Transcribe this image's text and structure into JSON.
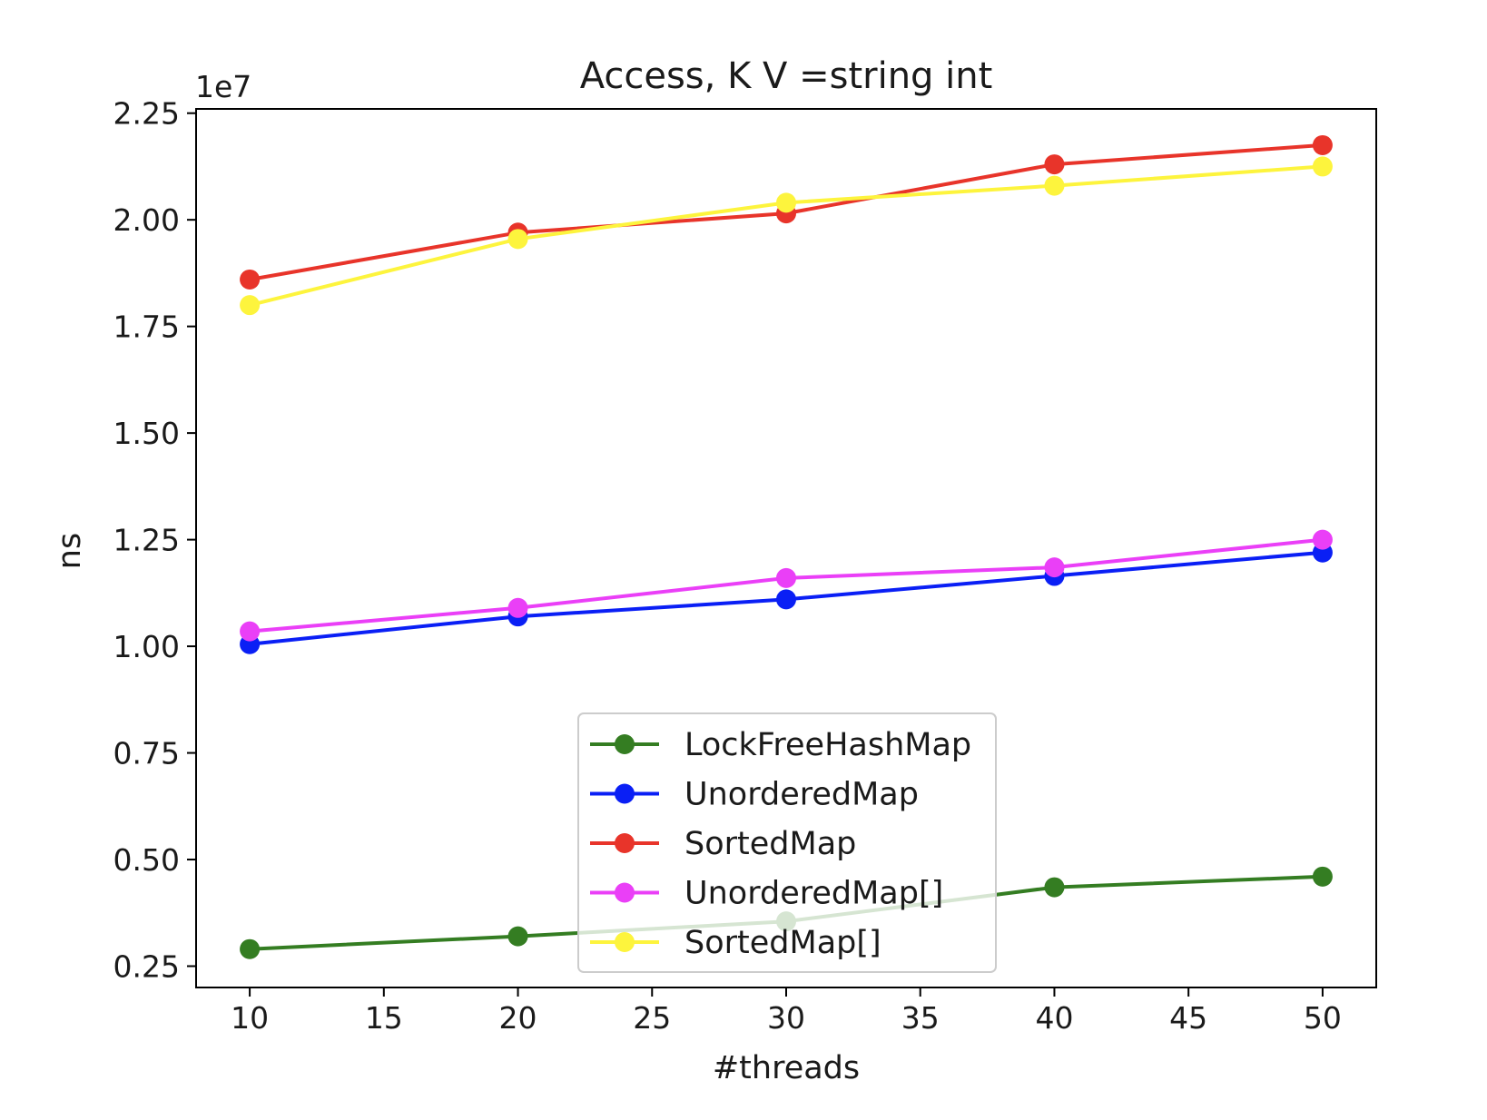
{
  "chart_data": {
    "type": "line",
    "title": "Access, K V =string int",
    "xlabel": "#threads",
    "ylabel": "ns",
    "y_multiplier_label": "1e7",
    "xlim": [
      8,
      52
    ],
    "ylim": [
      0.2,
      2.26
    ],
    "x_ticks": [
      10,
      15,
      20,
      25,
      30,
      35,
      40,
      45,
      50
    ],
    "x_tick_labels": [
      "10",
      "15",
      "20",
      "25",
      "30",
      "35",
      "40",
      "45",
      "50"
    ],
    "y_ticks": [
      0.25,
      0.5,
      0.75,
      1.0,
      1.25,
      1.5,
      1.75,
      2.0,
      2.25
    ],
    "y_tick_labels": [
      "0.25",
      "0.50",
      "0.75",
      "1.00",
      "1.25",
      "1.50",
      "1.75",
      "2.00",
      "2.25"
    ],
    "grid": false,
    "legend_position": "lower-center",
    "x": [
      10,
      20,
      30,
      40,
      50
    ],
    "series": [
      {
        "name": "LockFreeHashMap",
        "color": "#347d22",
        "values": [
          0.29,
          0.32,
          0.355,
          0.435,
          0.46
        ]
      },
      {
        "name": "UnorderedMap",
        "color": "#0a1ff5",
        "values": [
          1.005,
          1.07,
          1.11,
          1.165,
          1.22
        ]
      },
      {
        "name": "SortedMap",
        "color": "#e8342a",
        "values": [
          1.86,
          1.97,
          2.015,
          2.13,
          2.175
        ]
      },
      {
        "name": "UnorderedMap[]",
        "color": "#ea3ff7",
        "values": [
          1.035,
          1.09,
          1.16,
          1.185,
          1.25
        ]
      },
      {
        "name": "SortedMap[]",
        "color": "#fdf43d",
        "values": [
          1.8,
          1.955,
          2.04,
          2.08,
          2.125
        ]
      }
    ]
  }
}
